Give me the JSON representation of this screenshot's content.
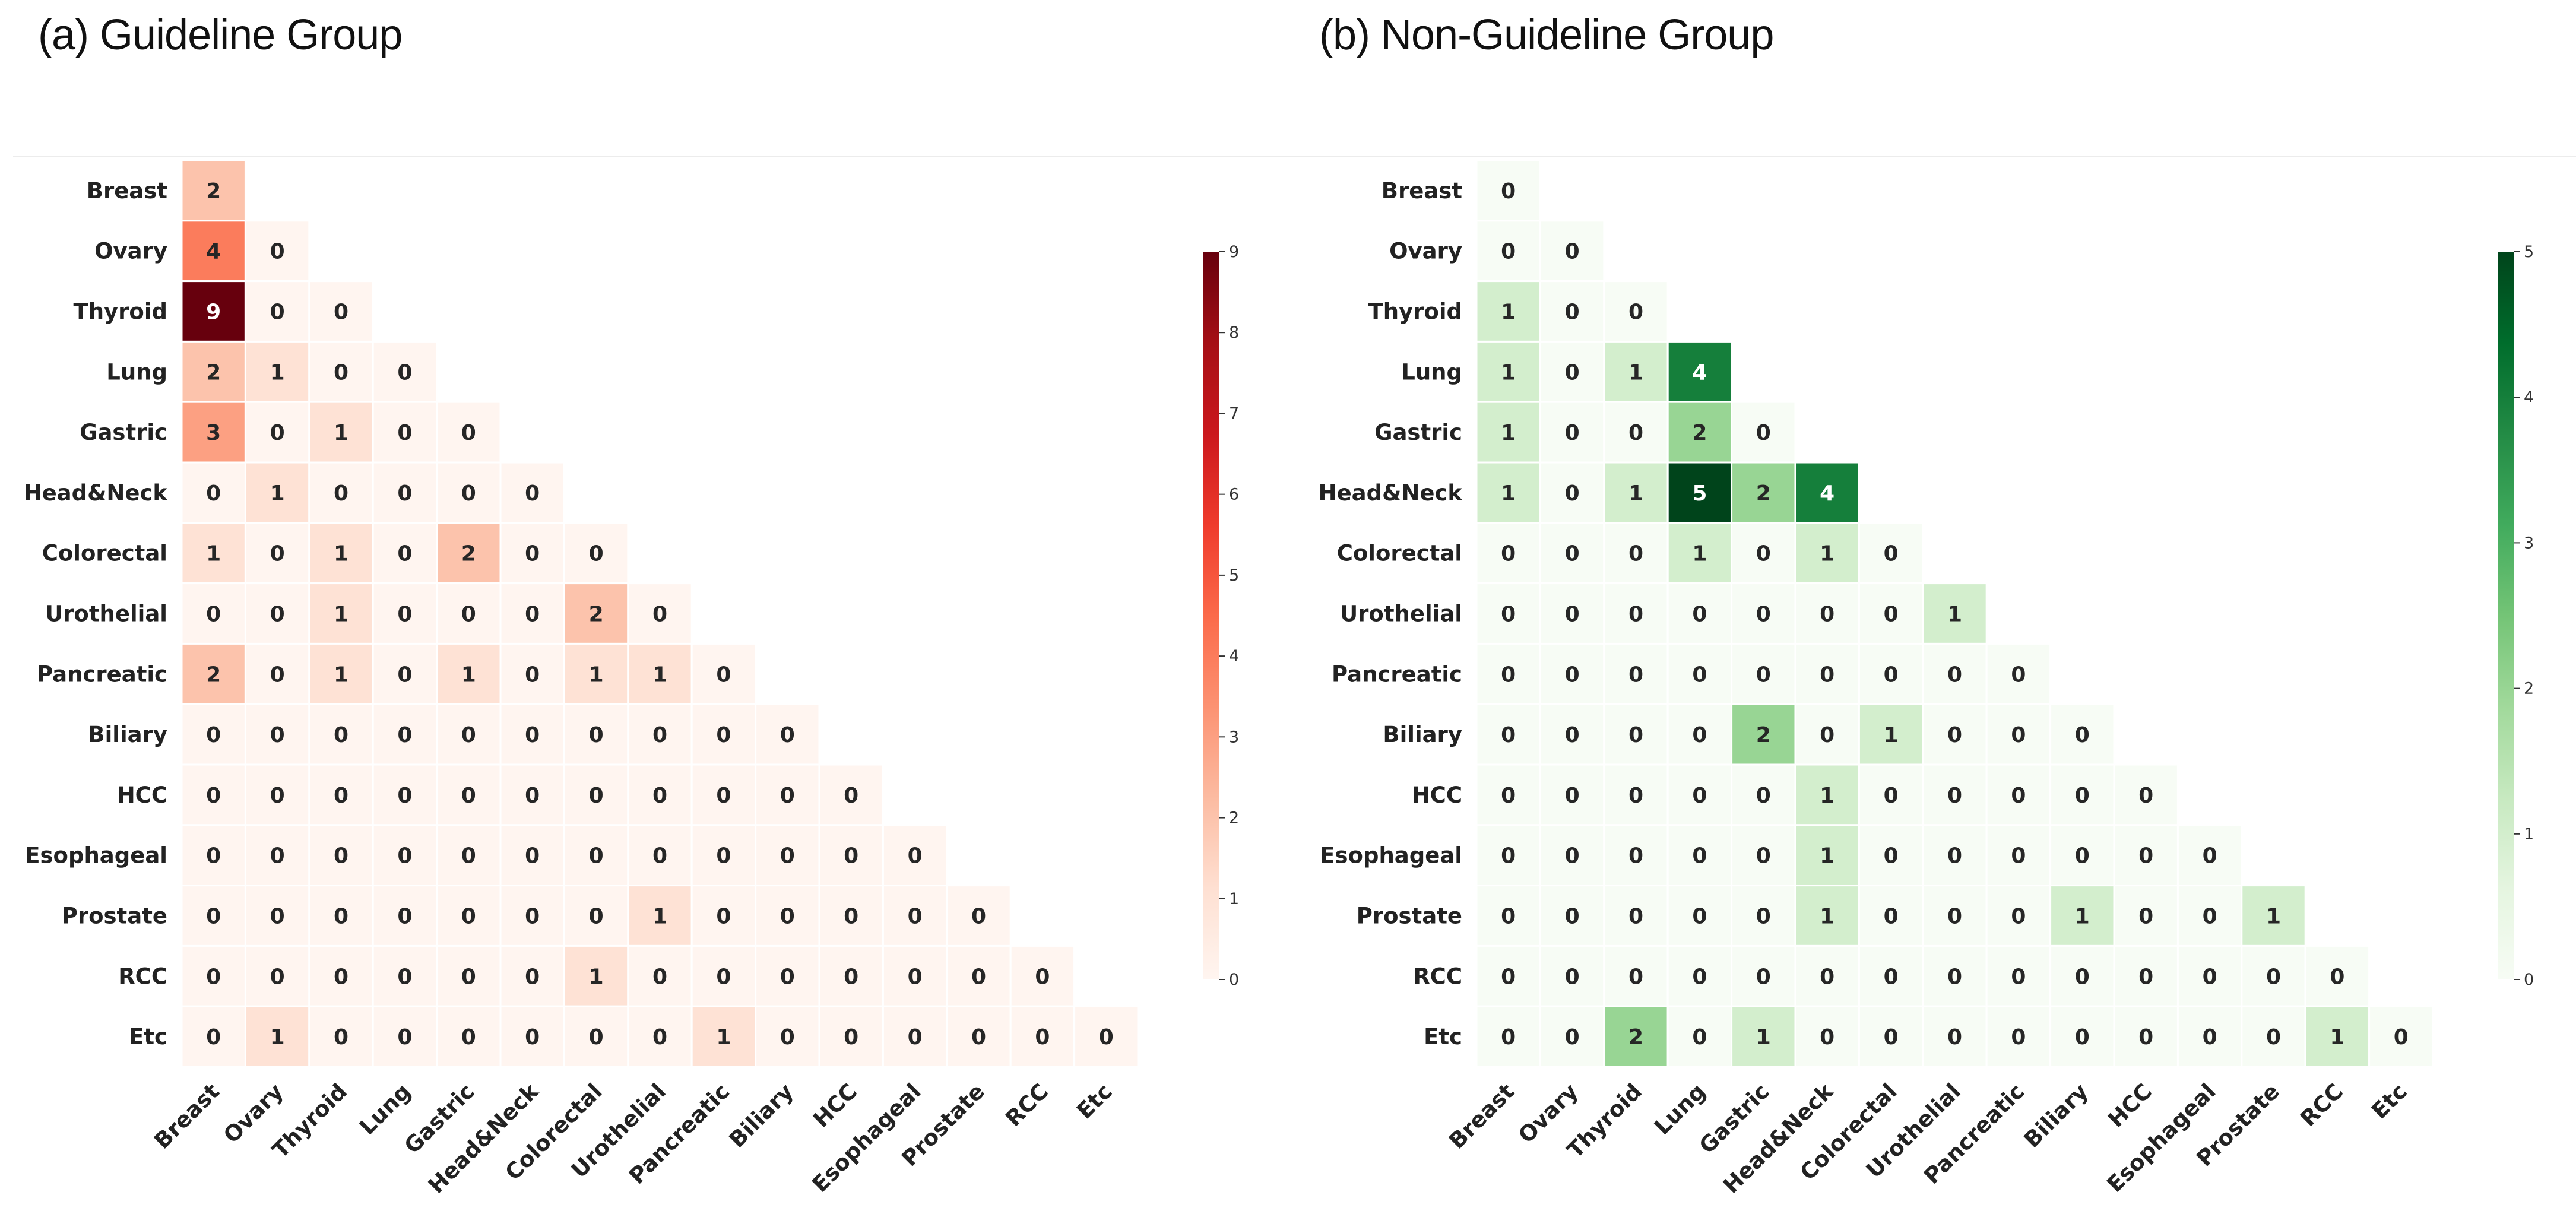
{
  "chart_data": [
    {
      "type": "heatmap",
      "title": "(a) Guideline Group",
      "labels": [
        "Breast",
        "Ovary",
        "Thyroid",
        "Lung",
        "Gastric",
        "Head&Neck",
        "Colorectal",
        "Urothelial",
        "Pancreatic",
        "Biliary",
        "HCC",
        "Esophageal",
        "Prostate",
        "RCC",
        "Etc"
      ],
      "matrix": [
        [
          2
        ],
        [
          4,
          0
        ],
        [
          9,
          0,
          0
        ],
        [
          2,
          1,
          0,
          0
        ],
        [
          3,
          0,
          1,
          0,
          0
        ],
        [
          0,
          1,
          0,
          0,
          0,
          0
        ],
        [
          1,
          0,
          1,
          0,
          2,
          0,
          0
        ],
        [
          0,
          0,
          1,
          0,
          0,
          0,
          2,
          0
        ],
        [
          2,
          0,
          1,
          0,
          1,
          0,
          1,
          1,
          0
        ],
        [
          0,
          0,
          0,
          0,
          0,
          0,
          0,
          0,
          0,
          0
        ],
        [
          0,
          0,
          0,
          0,
          0,
          0,
          0,
          0,
          0,
          0,
          0
        ],
        [
          0,
          0,
          0,
          0,
          0,
          0,
          0,
          0,
          0,
          0,
          0,
          0
        ],
        [
          0,
          0,
          0,
          0,
          0,
          0,
          0,
          1,
          0,
          0,
          0,
          0,
          0
        ],
        [
          0,
          0,
          0,
          0,
          0,
          0,
          1,
          0,
          0,
          0,
          0,
          0,
          0,
          0
        ],
        [
          0,
          1,
          0,
          0,
          0,
          0,
          0,
          0,
          1,
          0,
          0,
          0,
          0,
          0,
          0
        ]
      ],
      "vmin": 0,
      "vmax": 9,
      "colorbar_ticks": [
        0,
        1,
        2,
        3,
        4,
        5,
        6,
        7,
        8,
        9
      ],
      "colormap": [
        "#fff5f0",
        "#fee0d2",
        "#fcbba1",
        "#fc9272",
        "#fb6a4a",
        "#ef3b2c",
        "#cb181d",
        "#a50f15",
        "#67000d"
      ]
    },
    {
      "type": "heatmap",
      "title": "(b) Non-Guideline Group",
      "labels": [
        "Breast",
        "Ovary",
        "Thyroid",
        "Lung",
        "Gastric",
        "Head&Neck",
        "Colorectal",
        "Urothelial",
        "Pancreatic",
        "Biliary",
        "HCC",
        "Esophageal",
        "Prostate",
        "RCC",
        "Etc"
      ],
      "matrix": [
        [
          0
        ],
        [
          0,
          0
        ],
        [
          1,
          0,
          0
        ],
        [
          1,
          0,
          1,
          4
        ],
        [
          1,
          0,
          0,
          2,
          0
        ],
        [
          1,
          0,
          1,
          5,
          2,
          4
        ],
        [
          0,
          0,
          0,
          1,
          0,
          1,
          0
        ],
        [
          0,
          0,
          0,
          0,
          0,
          0,
          0,
          1
        ],
        [
          0,
          0,
          0,
          0,
          0,
          0,
          0,
          0,
          0
        ],
        [
          0,
          0,
          0,
          0,
          2,
          0,
          1,
          0,
          0,
          0
        ],
        [
          0,
          0,
          0,
          0,
          0,
          1,
          0,
          0,
          0,
          0,
          0
        ],
        [
          0,
          0,
          0,
          0,
          0,
          1,
          0,
          0,
          0,
          0,
          0,
          0
        ],
        [
          0,
          0,
          0,
          0,
          0,
          1,
          0,
          0,
          0,
          1,
          0,
          0,
          1
        ],
        [
          0,
          0,
          0,
          0,
          0,
          0,
          0,
          0,
          0,
          0,
          0,
          0,
          0,
          0
        ],
        [
          0,
          0,
          2,
          0,
          1,
          0,
          0,
          0,
          0,
          0,
          0,
          0,
          0,
          1,
          0
        ]
      ],
      "vmin": 0,
      "vmax": 5,
      "colorbar_ticks": [
        0,
        1,
        2,
        3,
        4,
        5
      ],
      "colormap": [
        "#f7fcf5",
        "#e5f5e0",
        "#c7e9c0",
        "#a1d99b",
        "#74c476",
        "#41ab5d",
        "#238b45",
        "#006d2c",
        "#00441b"
      ]
    }
  ]
}
